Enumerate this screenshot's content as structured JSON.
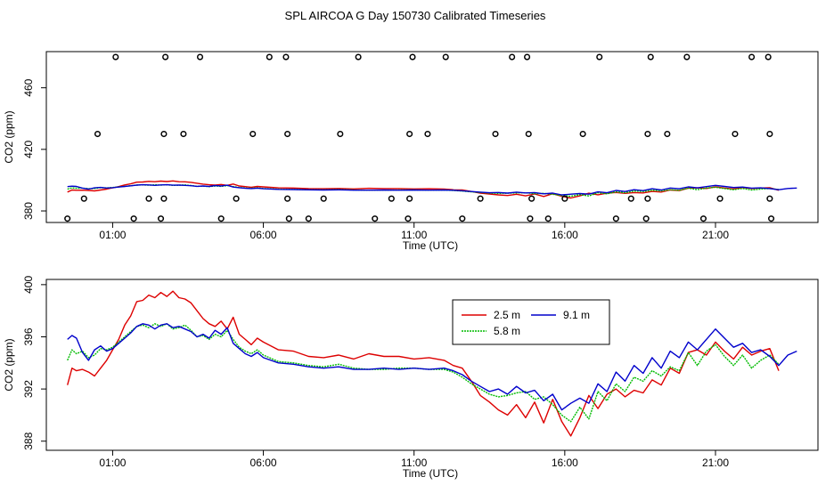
{
  "title": "SPL AIRCOA G  Day 150730  Calibrated Timeseries",
  "chart_data": [
    {
      "type": "scatter+line",
      "xlabel": "Time (UTC)",
      "ylabel": "CO2 (ppm)",
      "x_unit": "hours UTC",
      "xlim": [
        -1.2,
        24.4
      ],
      "ylim": [
        372.5,
        483.5
      ],
      "x_ticks": [
        1,
        6,
        11,
        16,
        21
      ],
      "x_tick_labels": [
        "01:00",
        "06:00",
        "11:00",
        "16:00",
        "21:00"
      ],
      "y_ticks": [
        380,
        420,
        460
      ],
      "y_tick_labels": [
        "380",
        "420",
        "460"
      ],
      "reference_points": {
        "name": "",
        "marker": "open-circle",
        "color": "#000000",
        "points": [
          [
            -0.5,
            375
          ],
          [
            0.05,
            388
          ],
          [
            0.5,
            430
          ],
          [
            1.1,
            480
          ],
          [
            1.7,
            375
          ],
          [
            2.2,
            388
          ],
          [
            2.6,
            375
          ],
          [
            2.7,
            388
          ],
          [
            2.7,
            430
          ],
          [
            2.75,
            480
          ],
          [
            3.35,
            430
          ],
          [
            3.9,
            480
          ],
          [
            4.6,
            375
          ],
          [
            5.1,
            388
          ],
          [
            5.65,
            430
          ],
          [
            6.2,
            480
          ],
          [
            6.75,
            480
          ],
          [
            6.8,
            388
          ],
          [
            6.8,
            430
          ],
          [
            6.85,
            375
          ],
          [
            7.5,
            375
          ],
          [
            8.0,
            388
          ],
          [
            8.55,
            430
          ],
          [
            9.15,
            480
          ],
          [
            9.7,
            375
          ],
          [
            10.25,
            388
          ],
          [
            10.8,
            375
          ],
          [
            10.85,
            388
          ],
          [
            10.85,
            430
          ],
          [
            10.95,
            480
          ],
          [
            11.45,
            430
          ],
          [
            12.05,
            480
          ],
          [
            12.6,
            375
          ],
          [
            13.2,
            388
          ],
          [
            13.7,
            430
          ],
          [
            14.25,
            480
          ],
          [
            14.75,
            480
          ],
          [
            14.8,
            430
          ],
          [
            14.85,
            375
          ],
          [
            14.9,
            388
          ],
          [
            15.45,
            375
          ],
          [
            16.0,
            388
          ],
          [
            16.6,
            430
          ],
          [
            17.15,
            480
          ],
          [
            17.7,
            375
          ],
          [
            18.2,
            388
          ],
          [
            18.7,
            375
          ],
          [
            18.75,
            388
          ],
          [
            18.75,
            430
          ],
          [
            18.85,
            480
          ],
          [
            19.4,
            430
          ],
          [
            20.05,
            480
          ],
          [
            20.6,
            375
          ],
          [
            21.15,
            388
          ],
          [
            21.65,
            430
          ],
          [
            22.2,
            480
          ],
          [
            22.75,
            480
          ],
          [
            22.8,
            430
          ],
          [
            22.8,
            388
          ],
          [
            22.85,
            375
          ]
        ]
      },
      "series_ref": "shared"
    },
    {
      "type": "line",
      "xlabel": "Time (UTC)",
      "ylabel": "CO2 (ppm)",
      "x_unit": "hours UTC",
      "xlim": [
        -1.2,
        24.4
      ],
      "ylim": [
        387.3,
        400.4
      ],
      "x_ticks": [
        1,
        6,
        11,
        16,
        21
      ],
      "x_tick_labels": [
        "01:00",
        "06:00",
        "11:00",
        "16:00",
        "21:00"
      ],
      "y_ticks": [
        388,
        392,
        396,
        400
      ],
      "y_tick_labels": [
        "388",
        "392",
        "396",
        "400"
      ],
      "legend": {
        "placement": "top-center",
        "entries": [
          {
            "label": "2.5 m",
            "color": "#dd0000"
          },
          {
            "label": "5.8 m",
            "color": "#00bb00"
          },
          {
            "label": "9.1 m",
            "color": "#0000cc"
          }
        ]
      },
      "series_ref": "shared"
    }
  ],
  "series": [
    {
      "name": "2.5 m",
      "color": "#dd0000",
      "x": [
        -0.5,
        -0.35,
        -0.2,
        0,
        0.2,
        0.4,
        0.6,
        0.8,
        1,
        1.2,
        1.4,
        1.6,
        1.8,
        2,
        2.2,
        2.4,
        2.6,
        2.8,
        3,
        3.2,
        3.4,
        3.6,
        3.8,
        4,
        4.2,
        4.4,
        4.6,
        4.8,
        5,
        5.2,
        5.4,
        5.6,
        5.8,
        6,
        6.5,
        7,
        7.5,
        8,
        8.5,
        9,
        9.5,
        10,
        10.5,
        11,
        11.5,
        12,
        12.3,
        12.6,
        12.9,
        13.2,
        13.5,
        13.8,
        14.1,
        14.4,
        14.7,
        15,
        15.3,
        15.6,
        15.9,
        16.2,
        16.5,
        16.8,
        17.1,
        17.4,
        17.7,
        18,
        18.3,
        18.6,
        18.9,
        19.2,
        19.5,
        19.8,
        20.1,
        20.4,
        20.7,
        21,
        21.3,
        21.6,
        21.9,
        22.2,
        22.5,
        22.8,
        23.1
      ],
      "y": [
        392.3,
        393.6,
        393.4,
        393.5,
        393.3,
        393.0,
        393.6,
        394.2,
        395.0,
        395.8,
        396.9,
        397.6,
        398.7,
        398.8,
        399.2,
        399.0,
        399.4,
        399.1,
        399.5,
        399.0,
        398.9,
        398.6,
        398.0,
        397.4,
        397.0,
        396.8,
        397.2,
        396.6,
        397.5,
        396.2,
        395.8,
        395.4,
        395.9,
        395.6,
        395.0,
        394.9,
        394.5,
        394.4,
        394.6,
        394.3,
        394.7,
        394.5,
        394.5,
        394.3,
        394.4,
        394.2,
        393.8,
        393.6,
        392.6,
        391.5,
        391.0,
        390.4,
        390.0,
        390.8,
        389.8,
        391.0,
        389.4,
        391.2,
        389.5,
        388.4,
        389.8,
        391.5,
        390.5,
        391.6,
        392.0,
        391.4,
        391.9,
        391.7,
        392.7,
        392.3,
        393.6,
        393.2,
        394.8,
        395.0,
        394.6,
        395.6,
        394.9,
        394.3,
        395.2,
        394.6,
        394.9,
        395.1,
        393.4
      ]
    },
    {
      "name": "5.8 m",
      "color": "#00bb00",
      "x": [
        -0.5,
        -0.35,
        -0.2,
        0,
        0.2,
        0.4,
        0.6,
        0.8,
        1,
        1.2,
        1.4,
        1.6,
        1.8,
        2,
        2.2,
        2.4,
        2.6,
        2.8,
        3,
        3.2,
        3.4,
        3.6,
        3.8,
        4,
        4.2,
        4.4,
        4.6,
        4.8,
        5,
        5.2,
        5.4,
        5.6,
        5.8,
        6,
        6.5,
        7,
        7.5,
        8,
        8.5,
        9,
        9.5,
        10,
        10.5,
        11,
        11.5,
        12,
        12.3,
        12.6,
        12.9,
        13.2,
        13.5,
        13.8,
        14.1,
        14.4,
        14.7,
        15,
        15.3,
        15.6,
        15.9,
        16.2,
        16.5,
        16.8,
        17.1,
        17.4,
        17.7,
        18,
        18.3,
        18.6,
        18.9,
        19.2,
        19.5,
        19.8,
        20.1,
        20.4,
        20.7,
        21,
        21.3,
        21.6,
        21.9,
        22.2,
        22.5,
        22.8,
        23.1
      ],
      "y": [
        394.2,
        395.0,
        394.7,
        394.9,
        394.4,
        394.6,
        395.1,
        395.0,
        395.2,
        395.6,
        396.0,
        396.4,
        396.8,
        396.9,
        396.7,
        397.0,
        396.8,
        397.0,
        396.6,
        396.7,
        396.9,
        396.5,
        396.0,
        396.1,
        395.8,
        396.2,
        396.0,
        396.5,
        395.8,
        395.2,
        394.9,
        394.7,
        395.0,
        394.6,
        394.1,
        394.0,
        393.8,
        393.7,
        393.9,
        393.6,
        393.5,
        393.5,
        393.6,
        393.6,
        393.5,
        393.5,
        393.3,
        392.9,
        392.4,
        392.0,
        391.6,
        391.4,
        391.5,
        391.7,
        391.8,
        391.2,
        391.4,
        390.8,
        390.0,
        389.5,
        390.6,
        389.7,
        391.8,
        391.1,
        392.4,
        391.8,
        392.9,
        392.6,
        393.4,
        393.0,
        393.7,
        393.4,
        394.8,
        393.8,
        394.9,
        395.4,
        394.5,
        393.8,
        394.6,
        393.6,
        394.2,
        394.6,
        393.9
      ]
    },
    {
      "name": "9.1 m",
      "color": "#0000cc",
      "x": [
        -0.5,
        -0.35,
        -0.2,
        0,
        0.2,
        0.4,
        0.6,
        0.8,
        1,
        1.2,
        1.4,
        1.6,
        1.8,
        2,
        2.2,
        2.4,
        2.6,
        2.8,
        3,
        3.2,
        3.4,
        3.6,
        3.8,
        4,
        4.2,
        4.4,
        4.6,
        4.8,
        5,
        5.2,
        5.4,
        5.6,
        5.8,
        6,
        6.5,
        7,
        7.5,
        8,
        8.5,
        9,
        9.5,
        10,
        10.5,
        11,
        11.5,
        12,
        12.3,
        12.6,
        12.9,
        13.2,
        13.5,
        13.8,
        14.1,
        14.4,
        14.7,
        15,
        15.3,
        15.6,
        15.9,
        16.2,
        16.5,
        16.8,
        17.1,
        17.4,
        17.7,
        18,
        18.3,
        18.6,
        18.9,
        19.2,
        19.5,
        19.8,
        20.1,
        20.4,
        20.7,
        21,
        21.3,
        21.6,
        21.9,
        22.2,
        22.5,
        22.8,
        23.1,
        23.4,
        23.7
      ],
      "y": [
        395.8,
        396.1,
        395.9,
        394.8,
        394.2,
        395.0,
        395.3,
        394.9,
        395.1,
        395.5,
        395.9,
        396.3,
        396.8,
        397.0,
        396.9,
        396.6,
        396.9,
        397.0,
        396.7,
        396.8,
        396.6,
        396.4,
        396.0,
        396.2,
        395.9,
        396.5,
        396.2,
        396.7,
        395.5,
        395.1,
        394.7,
        394.5,
        394.8,
        394.4,
        394.0,
        393.9,
        393.7,
        393.6,
        393.7,
        393.5,
        393.5,
        393.6,
        393.5,
        393.6,
        393.5,
        393.6,
        393.4,
        393.1,
        392.6,
        392.2,
        391.8,
        392.0,
        391.6,
        392.2,
        391.7,
        391.9,
        391.1,
        391.6,
        390.4,
        390.9,
        391.3,
        390.9,
        392.4,
        391.8,
        393.3,
        392.6,
        393.8,
        393.2,
        394.4,
        393.6,
        394.9,
        394.4,
        395.6,
        395.0,
        395.8,
        396.6,
        395.9,
        395.2,
        395.5,
        394.8,
        395.0,
        394.5,
        393.8,
        394.6,
        394.9
      ]
    }
  ]
}
